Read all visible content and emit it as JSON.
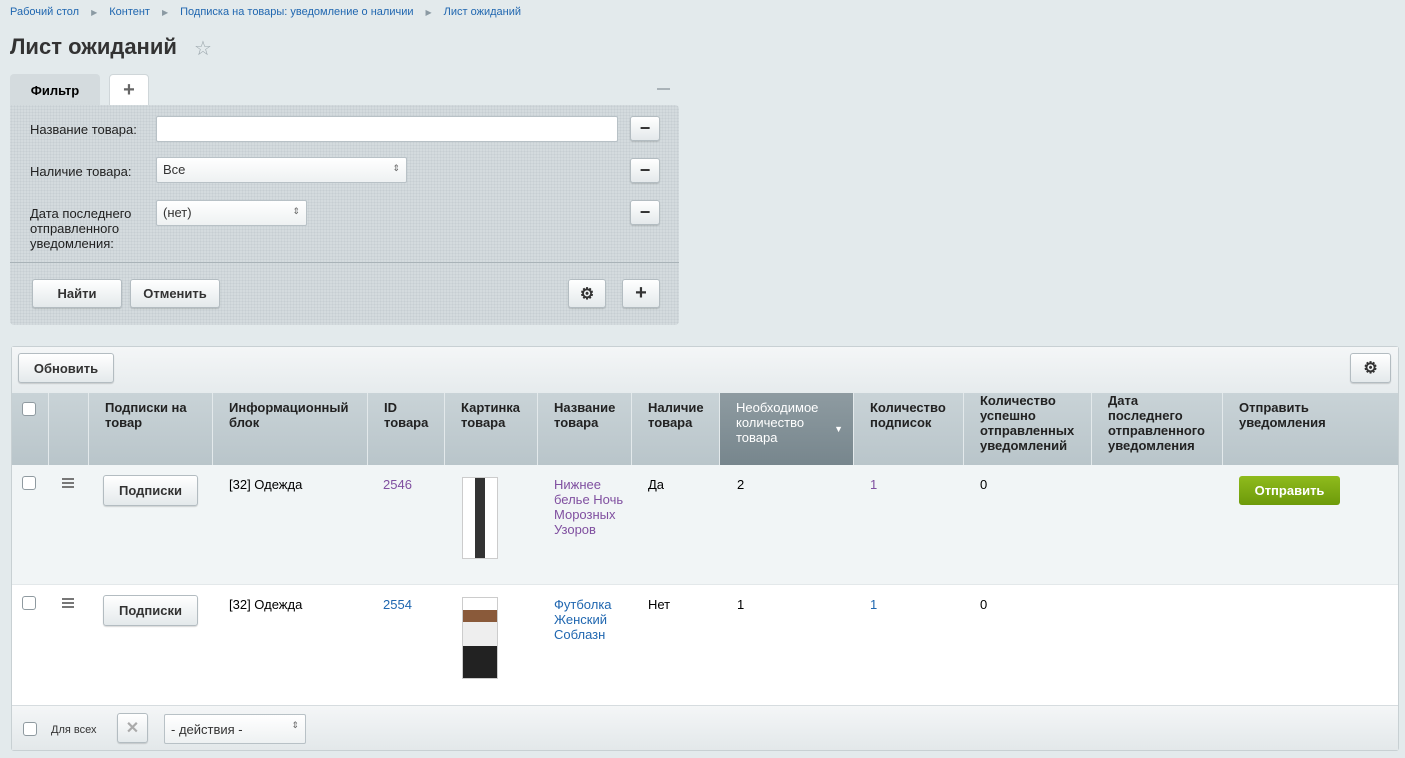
{
  "breadcrumb": [
    "Рабочий стол",
    "Контент",
    "Подписка на товары: уведомление о наличии",
    "Лист ожиданий"
  ],
  "title": "Лист ожиданий",
  "filter": {
    "tab": "Фильтр",
    "fields": [
      {
        "label": "Название товара:",
        "value": ""
      },
      {
        "label": "Наличие товара:",
        "value": "Все"
      },
      {
        "label": "Дата последнего отправленного уведомления:",
        "value": "(нет)"
      }
    ],
    "find": "Найти",
    "cancel": "Отменить"
  },
  "toolbar": {
    "refresh": "Обновить"
  },
  "columns": [
    "Подписки на товар",
    "Информационный блок",
    "ID товара",
    "Картинка товара",
    "Название товара",
    "Наличие товара",
    "Необходимое количество товара",
    "Количество подписок",
    "Количество успешно отправленных уведомлений",
    "Дата последнего отправленного уведомления",
    "Отправить уведомления"
  ],
  "rows": [
    {
      "subs_btn": "Подписки",
      "iblock": "[32] Одежда",
      "id": "2546",
      "name": "Нижнее белье Ночь Морозных Узоров",
      "avail": "Да",
      "qty": "2",
      "subs": "1",
      "sent": "0",
      "date": "",
      "send": "Отправить"
    },
    {
      "subs_btn": "Подписки",
      "iblock": "[32] Одежда",
      "id": "2554",
      "name": "Футболка Женский Соблазн",
      "avail": "Нет",
      "qty": "1",
      "subs": "1",
      "sent": "0",
      "date": ""
    }
  ],
  "footer": {
    "for_all": "Для всех",
    "actions": "- действия -"
  },
  "colors": {
    "accent": "#2067b0",
    "send_button": "#7ea80f",
    "sorted_header": "#7f8d93"
  }
}
